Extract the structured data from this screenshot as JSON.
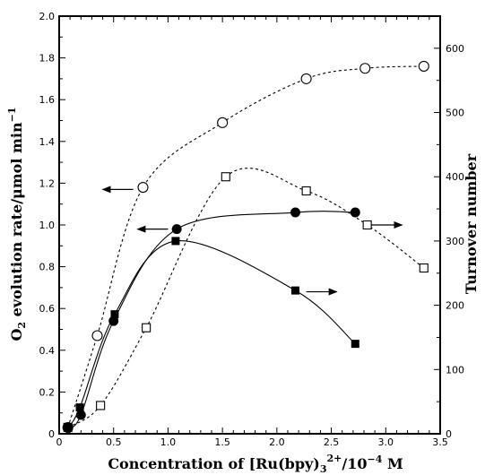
{
  "chart_data": {
    "type": "scatter",
    "xlabel": {
      "prefix": "Concentration of [Ru(bpy)",
      "sub": "3",
      "sup": "2+",
      "mid": "/10",
      "exp": "−4",
      "suffix": " M"
    },
    "ylabel_left": {
      "prefix": "O",
      "sub": "2",
      "mid": " evolution rate/μmol min",
      "sup": "−1"
    },
    "ylabel_right": "Turnover number",
    "xlim": [
      0,
      3.5
    ],
    "ylim_left": [
      0,
      2.0
    ],
    "ylim_right": [
      0,
      650
    ],
    "x_ticks": [
      "0",
      "0.5",
      "1.0",
      "1.5",
      "2.0",
      "2.5",
      "3.0",
      "3.5"
    ],
    "y_left_ticks": [
      "0",
      "0.2",
      "0.4",
      "0.6",
      "0.8",
      "1.0",
      "1.2",
      "1.4",
      "1.6",
      "1.8",
      "2.0"
    ],
    "y_right_ticks": [
      "0",
      "100",
      "200",
      "300",
      "400",
      "500",
      "600"
    ],
    "grid": false,
    "series": [
      {
        "marker": "open-circle",
        "line": "dashed",
        "axis": "left",
        "x": [
          0.08,
          0.35,
          0.77,
          1.5,
          2.27,
          2.81,
          3.35
        ],
        "y": [
          0.03,
          0.47,
          1.18,
          1.49,
          1.7,
          1.75,
          1.76
        ]
      },
      {
        "marker": "filled-circle",
        "line": "solid",
        "axis": "left",
        "x": [
          0.08,
          0.2,
          0.5,
          1.08,
          2.17,
          2.72
        ],
        "y": [
          0.03,
          0.09,
          0.54,
          0.98,
          1.06,
          1.06
        ]
      },
      {
        "marker": "open-square",
        "line": "dashed",
        "axis": "right",
        "x": [
          0.08,
          0.38,
          0.8,
          1.53,
          2.27,
          2.83,
          3.35
        ],
        "y": [
          10,
          44,
          165,
          400,
          378,
          325,
          258
        ]
      },
      {
        "marker": "filled-square",
        "line": "solid",
        "axis": "right",
        "x": [
          0.08,
          0.19,
          0.51,
          1.07,
          2.17,
          2.72
        ],
        "y": [
          10,
          41,
          186,
          300,
          223,
          140
        ]
      }
    ],
    "annotations": [
      {
        "type": "arrow",
        "direction": "left",
        "axis": "left",
        "x_from": 0.68,
        "x_to": 0.4,
        "y": 1.17
      },
      {
        "type": "arrow",
        "direction": "left",
        "axis": "left",
        "x_from": 1.0,
        "x_to": 0.72,
        "y": 0.98
      },
      {
        "type": "arrow",
        "direction": "right",
        "axis": "left",
        "x_from": 2.87,
        "x_to": 3.15,
        "y": 1.0
      },
      {
        "type": "arrow",
        "direction": "right",
        "axis": "left",
        "x_from": 2.27,
        "x_to": 2.55,
        "y": 0.68
      }
    ]
  }
}
